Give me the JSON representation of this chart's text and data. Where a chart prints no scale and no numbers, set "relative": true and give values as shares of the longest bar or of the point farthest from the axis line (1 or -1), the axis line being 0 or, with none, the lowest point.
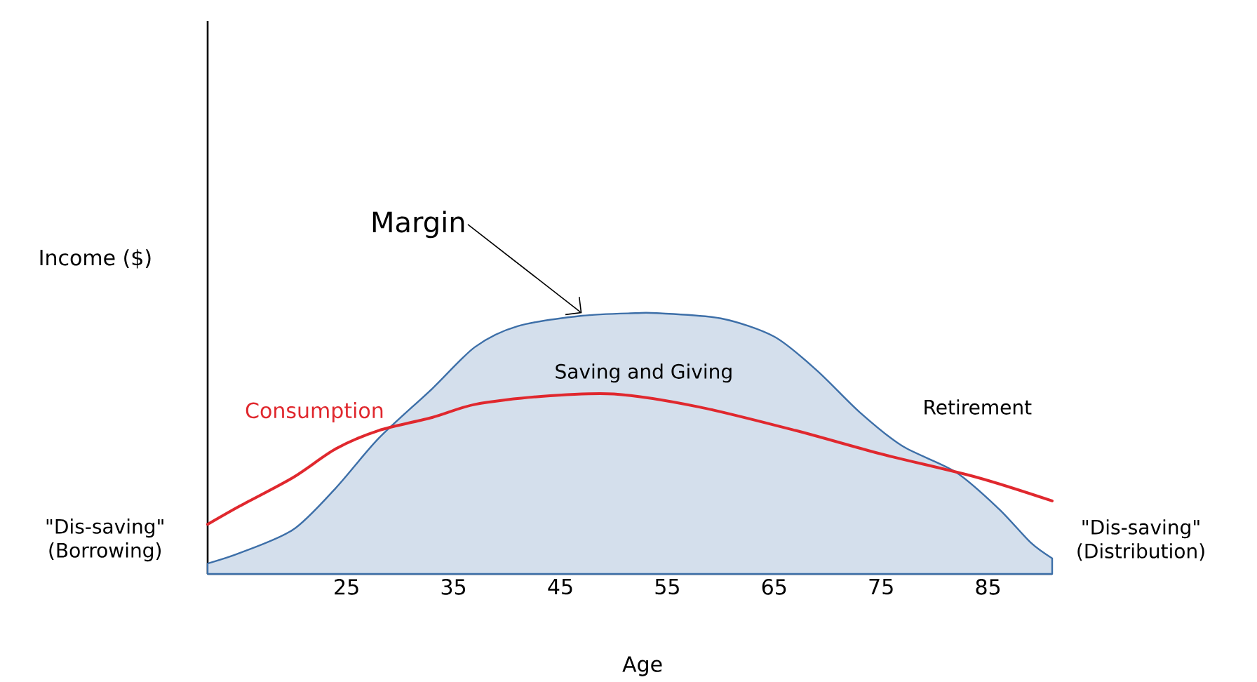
{
  "chart_data": {
    "type": "area",
    "relative": true,
    "xlabel": "Age",
    "ylabel": "Income ($)",
    "xlim": [
      12,
      91
    ],
    "xticks": [
      25,
      35,
      45,
      55,
      65,
      75,
      85
    ],
    "series": [
      {
        "color": "#3d6fa8",
        "x": [
          12,
          15,
          20,
          24,
          28,
          33,
          37,
          41,
          47,
          52,
          54,
          60,
          65,
          69,
          73,
          77,
          82,
          86,
          89,
          91
        ],
        "values": [
          0.04,
          0.08,
          0.17,
          0.33,
          0.52,
          0.71,
          0.87,
          0.95,
          0.99,
          1,
          1,
          0.98,
          0.91,
          0.78,
          0.62,
          0.49,
          0.39,
          0.25,
          0.12,
          0.06
        ]
      },
      {
        "type": "line",
        "name": "Consumption",
        "color": "#e0282e",
        "x": [
          12,
          15,
          20,
          24,
          28,
          33,
          37,
          43,
          50,
          58,
          67,
          75,
          84,
          91
        ],
        "values": [
          0.19,
          0.26,
          0.37,
          0.48,
          0.55,
          0.6,
          0.65,
          0.68,
          0.69,
          0.64,
          0.55,
          0.46,
          0.37,
          0.28
        ]
      }
    ],
    "annotations": [
      {
        "text": "Margin",
        "x": 47,
        "y": 1
      },
      "Saving and Giving",
      "Retirement",
      "\"Dis-saving\" (Borrowing)",
      "\"Dis-saving\" (Distribution)"
    ]
  }
}
